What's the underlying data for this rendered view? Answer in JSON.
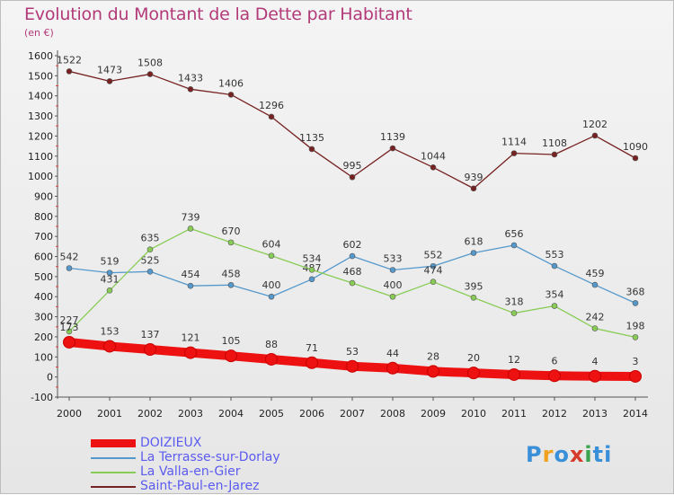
{
  "title": "Evolution du Montant de la Dette par Habitant",
  "subtitle": "(en €)",
  "logo": {
    "text": "Proxiti",
    "colors": [
      "#3a8fd9",
      "#f0a11f",
      "#3a8fd9",
      "#d63a2a",
      "#3aa34f",
      "#3a8fd9",
      "#3a8fd9"
    ]
  },
  "chart_data": {
    "type": "line",
    "x": [
      "2000",
      "2001",
      "2002",
      "2003",
      "2004",
      "2005",
      "2006",
      "2007",
      "2008",
      "2009",
      "2010",
      "2011",
      "2012",
      "2013",
      "2014"
    ],
    "ylim": [
      -100,
      1600
    ],
    "yticks": [
      -100,
      0,
      100,
      200,
      300,
      400,
      500,
      600,
      700,
      800,
      900,
      1000,
      1100,
      1200,
      1300,
      1400,
      1500,
      1600
    ],
    "grid": false,
    "legend": "bottom-left",
    "series": [
      {
        "name": "DOIZIEUX",
        "color": "#ee1111",
        "thick": true,
        "values": [
          173,
          153,
          137,
          121,
          105,
          88,
          71,
          53,
          44,
          28,
          20,
          12,
          6,
          4,
          3
        ]
      },
      {
        "name": "La Terrasse-sur-Dorlay",
        "color": "#5599cc",
        "thick": false,
        "values": [
          542,
          519,
          525,
          454,
          458,
          400,
          487,
          602,
          533,
          552,
          618,
          656,
          553,
          459,
          368
        ]
      },
      {
        "name": "La Valla-en-Gier",
        "color": "#88cc55",
        "thick": false,
        "values": [
          227,
          431,
          635,
          739,
          670,
          604,
          534,
          468,
          400,
          474,
          395,
          318,
          354,
          242,
          198
        ]
      },
      {
        "name": "Saint-Paul-en-Jarez",
        "color": "#772222",
        "thick": false,
        "values": [
          1522,
          1473,
          1508,
          1433,
          1406,
          1296,
          1135,
          995,
          1139,
          1044,
          939,
          1114,
          1108,
          1202,
          1090
        ]
      }
    ]
  }
}
